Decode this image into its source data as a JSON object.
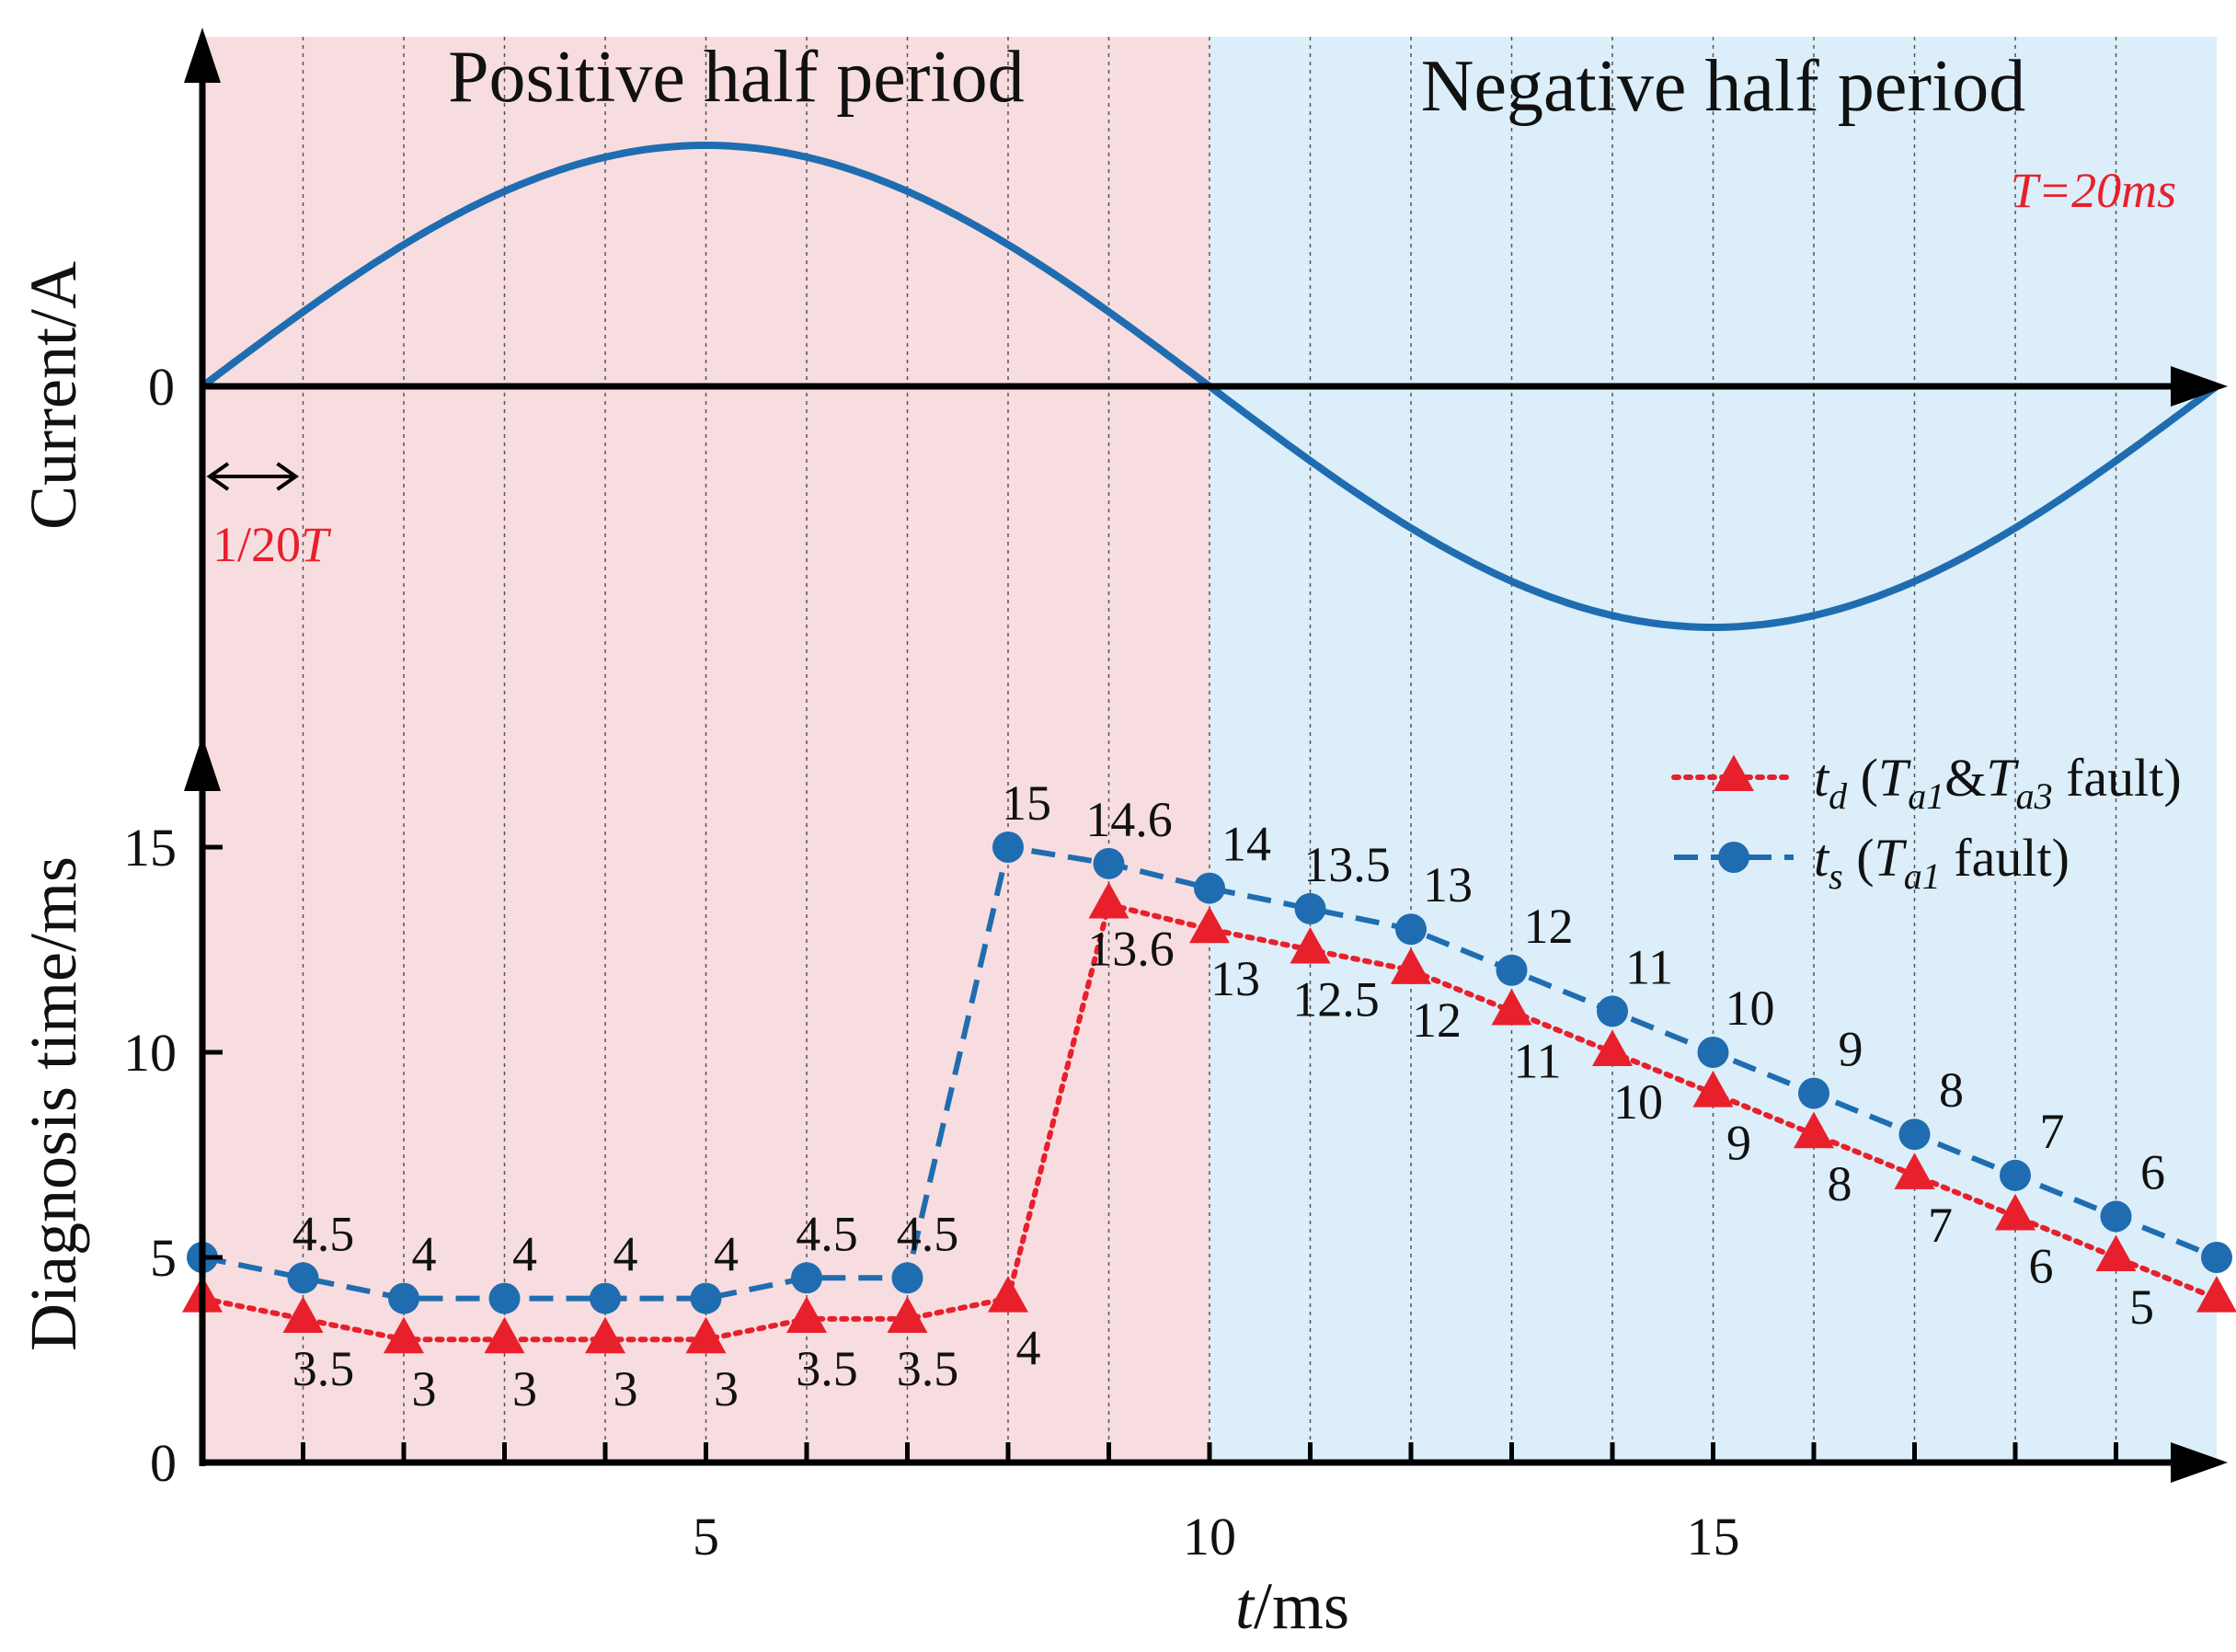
{
  "colors": {
    "positive_band": "#f7dde0",
    "negative_band": "#dbeef9",
    "sine": "#1f6db0",
    "td": "#e8202b",
    "ts": "#1f6db0",
    "annotation": "#e8202b",
    "axis": "#000000"
  },
  "chart_data": [
    {
      "type": "line",
      "name": "current-waveform",
      "ylabel": "Current/A",
      "zero_label": "0",
      "band_titles": {
        "positive": "Positive half period",
        "negative": "Negative half period"
      },
      "period_note": "T=20ms",
      "interval_note": "1/20T",
      "x_range": [
        0,
        20
      ],
      "period_ms": 20,
      "amplitude": 1
    },
    {
      "type": "line",
      "name": "diagnosis-time",
      "xlabel": "t/ms",
      "ylabel": "Diagnosis time/ms",
      "x_range": [
        0,
        20
      ],
      "y_range": [
        0,
        16
      ],
      "x_ticks": [
        {
          "value": 5,
          "label": "5"
        },
        {
          "value": 10,
          "label": "10"
        },
        {
          "value": 15,
          "label": "15"
        }
      ],
      "y_ticks": [
        {
          "value": 0,
          "label": "0"
        },
        {
          "value": 5,
          "label": "5"
        },
        {
          "value": 10,
          "label": "10"
        },
        {
          "value": 15,
          "label": "15"
        }
      ],
      "x": [
        0,
        1,
        2,
        3,
        4,
        5,
        6,
        7,
        8,
        9,
        10,
        11,
        12,
        13,
        14,
        15,
        16,
        17,
        18,
        19,
        20
      ],
      "series": [
        {
          "name": "td",
          "legend": {
            "sym": "t",
            "sub": "d",
            "open": " (",
            "t1": "T",
            "t1sub": "a1",
            "amp": "&",
            "t2": "T",
            "t2sub": "a3",
            "close": " fault)"
          },
          "marker": "triangle",
          "style": "dotted",
          "values": [
            4,
            3.5,
            3,
            3,
            3,
            3,
            3.5,
            3.5,
            4,
            13.6,
            13,
            12.5,
            12,
            11,
            10,
            9,
            8,
            7,
            6,
            5,
            4
          ],
          "labels": [
            "",
            "3.5",
            "3",
            "3",
            "3",
            "3",
            "3.5",
            "3.5",
            "4",
            "13.6",
            "13",
            "12.5",
            "12",
            "11",
            "10",
            "9",
            "8",
            "7",
            "6",
            "5",
            ""
          ]
        },
        {
          "name": "ts",
          "legend": {
            "sym": "t",
            "sub": "s",
            "open": " (",
            "t1": "T",
            "t1sub": "a1",
            "close": " fault)"
          },
          "marker": "circle",
          "style": "dashed",
          "values": [
            5,
            4.5,
            4,
            4,
            4,
            4,
            4.5,
            4.5,
            15,
            14.6,
            14,
            13.5,
            13,
            12,
            11,
            10,
            9,
            8,
            7,
            6,
            5
          ],
          "labels": [
            "",
            "4.5",
            "4",
            "4",
            "4",
            "4",
            "4.5",
            "4.5",
            "15",
            "14.6",
            "14",
            "13.5",
            "13",
            "12",
            "11",
            "10",
            "9",
            "8",
            "7",
            "6",
            ""
          ]
        }
      ]
    }
  ]
}
